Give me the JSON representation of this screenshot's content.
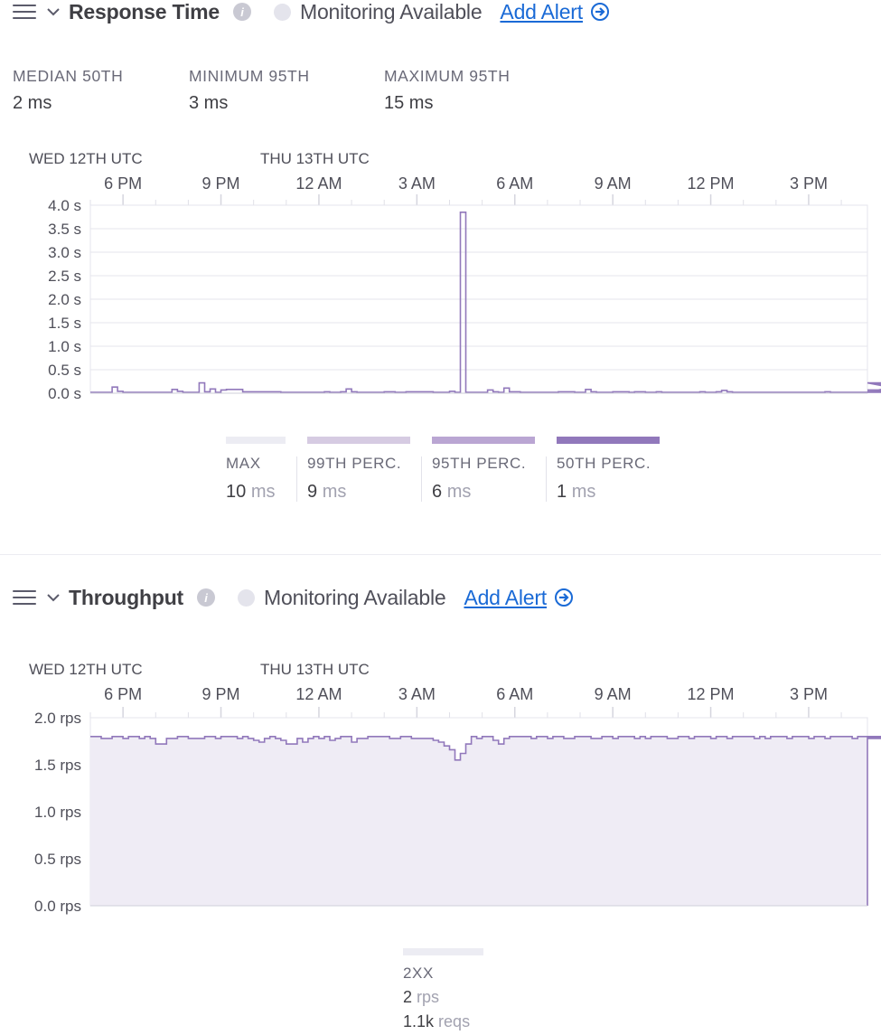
{
  "panels": [
    {
      "title": "Response Time",
      "monitoring": "Monitoring Available",
      "add_alert": "Add Alert",
      "stats": [
        {
          "label": "MEDIAN 50TH",
          "value": "2 ms"
        },
        {
          "label": "MINIMUM 95TH",
          "value": "3 ms"
        },
        {
          "label": "MAXIMUM 95TH",
          "value": "15 ms"
        }
      ],
      "legend": [
        {
          "label": "MAX",
          "value": "10",
          "unit": "ms",
          "color": "#ececf3"
        },
        {
          "label": "99TH PERC.",
          "value": "9",
          "unit": "ms",
          "color": "#d6cbe2"
        },
        {
          "label": "95TH PERC.",
          "value": "6",
          "unit": "ms",
          "color": "#baa6d3"
        },
        {
          "label": "50TH PERC.",
          "value": "1",
          "unit": "ms",
          "color": "#9178bb"
        }
      ]
    },
    {
      "title": "Throughput",
      "monitoring": "Monitoring Available",
      "add_alert": "Add Alert",
      "legend": [
        {
          "label": "2XX",
          "value": "2",
          "unit": "rps",
          "value2": "1.1k",
          "unit2": "reqs",
          "color": "#ececf3"
        }
      ]
    }
  ],
  "chart_data": [
    {
      "type": "line",
      "title": "Response Time",
      "date_labels": [
        "WED 12TH UTC",
        "THU 13TH UTC"
      ],
      "x_tick_labels": [
        "6 PM",
        "9 PM",
        "12 AM",
        "3 AM",
        "6 AM",
        "9 AM",
        "12 PM",
        "3 PM"
      ],
      "x_tick_hours": [
        18,
        21,
        24,
        27,
        30,
        33,
        36,
        39
      ],
      "x_range_hours": [
        17.0,
        40.8
      ],
      "y_tick_labels": [
        "4.0 s",
        "3.5 s",
        "3.0 s",
        "2.5 s",
        "2.0 s",
        "1.5 s",
        "1.0 s",
        "0.5 s",
        "0.0 s"
      ],
      "ylim": [
        0,
        4.0
      ],
      "grid": true,
      "series": [
        {
          "name": "MAX",
          "color": "#9178bb",
          "step_minutes": 10,
          "values": [
            0.02,
            0.02,
            0.02,
            0.02,
            0.13,
            0.04,
            0.02,
            0.02,
            0.02,
            0.02,
            0.02,
            0.02,
            0.02,
            0.02,
            0.02,
            0.08,
            0.04,
            0.02,
            0.02,
            0.02,
            0.22,
            0.03,
            0.09,
            0.02,
            0.07,
            0.08,
            0.08,
            0.08,
            0.03,
            0.03,
            0.03,
            0.03,
            0.03,
            0.03,
            0.03,
            0.02,
            0.02,
            0.02,
            0.02,
            0.02,
            0.02,
            0.02,
            0.02,
            0.03,
            0.02,
            0.02,
            0.03,
            0.09,
            0.03,
            0.02,
            0.02,
            0.02,
            0.02,
            0.02,
            0.03,
            0.03,
            0.02,
            0.02,
            0.03,
            0.03,
            0.03,
            0.03,
            0.03,
            0.02,
            0.02,
            0.02,
            0.04,
            0.02,
            3.85,
            0.02,
            0.02,
            0.02,
            0.02,
            0.07,
            0.03,
            0.02,
            0.11,
            0.03,
            0.03,
            0.02,
            0.02,
            0.02,
            0.02,
            0.02,
            0.02,
            0.02,
            0.03,
            0.03,
            0.03,
            0.02,
            0.02,
            0.08,
            0.03,
            0.02,
            0.02,
            0.02,
            0.03,
            0.03,
            0.03,
            0.02,
            0.03,
            0.03,
            0.02,
            0.02,
            0.03,
            0.02,
            0.02,
            0.02,
            0.02,
            0.02,
            0.02,
            0.02,
            0.03,
            0.02,
            0.02,
            0.03,
            0.06,
            0.03,
            0.02,
            0.02,
            0.02,
            0.02,
            0.02,
            0.02,
            0.02,
            0.02,
            0.02,
            0.02,
            0.02,
            0.02,
            0.02,
            0.02,
            0.02,
            0.02,
            0.02,
            0.03,
            0.02,
            0.02,
            0.02,
            0.02,
            0.02,
            0.02,
            0.02,
            0.02,
            0.02,
            0.02,
            0.02,
            0.02,
            0.02,
            0.02,
            0.02,
            0.22,
            0.02,
            0.02,
            0.02,
            0.02,
            0.02,
            0.22,
            0.02,
            0.02,
            0.03,
            0.02,
            0.02,
            0.07,
            0.04,
            0.03,
            0.03,
            0.02,
            0.02,
            0.02,
            0.02,
            0.02,
            0.02,
            0.02,
            0.02,
            0.02,
            0.02,
            0.02,
            0.02,
            0.02
          ]
        }
      ]
    },
    {
      "type": "area",
      "title": "Throughput",
      "date_labels": [
        "WED 12TH UTC",
        "THU 13TH UTC"
      ],
      "x_tick_labels": [
        "6 PM",
        "9 PM",
        "12 AM",
        "3 AM",
        "6 AM",
        "9 AM",
        "12 PM",
        "3 PM"
      ],
      "x_tick_hours": [
        18,
        21,
        24,
        27,
        30,
        33,
        36,
        39
      ],
      "x_range_hours": [
        17.0,
        40.8
      ],
      "y_tick_labels": [
        "2.0 rps",
        "1.5 rps",
        "1.0 rps",
        "0.5 rps",
        "0.0 rps"
      ],
      "ylim": [
        0,
        2.0
      ],
      "grid": true,
      "series": [
        {
          "name": "2XX",
          "color": "#9178bb",
          "fill": "#efecf5",
          "step_minutes": 10,
          "values": [
            1.8,
            1.8,
            1.78,
            1.78,
            1.8,
            1.8,
            1.78,
            1.8,
            1.8,
            1.78,
            1.8,
            1.78,
            1.72,
            1.72,
            1.78,
            1.78,
            1.8,
            1.8,
            1.78,
            1.78,
            1.78,
            1.8,
            1.8,
            1.78,
            1.8,
            1.8,
            1.8,
            1.78,
            1.8,
            1.78,
            1.76,
            1.74,
            1.78,
            1.8,
            1.78,
            1.76,
            1.72,
            1.72,
            1.78,
            1.74,
            1.78,
            1.8,
            1.78,
            1.8,
            1.76,
            1.78,
            1.8,
            1.8,
            1.74,
            1.78,
            1.78,
            1.8,
            1.8,
            1.8,
            1.8,
            1.78,
            1.78,
            1.8,
            1.8,
            1.78,
            1.78,
            1.78,
            1.78,
            1.76,
            1.74,
            1.7,
            1.66,
            1.55,
            1.62,
            1.72,
            1.8,
            1.78,
            1.8,
            1.8,
            1.76,
            1.72,
            1.78,
            1.8,
            1.8,
            1.8,
            1.8,
            1.78,
            1.8,
            1.8,
            1.78,
            1.8,
            1.8,
            1.78,
            1.78,
            1.8,
            1.8,
            1.8,
            1.78,
            1.78,
            1.8,
            1.8,
            1.78,
            1.8,
            1.8,
            1.8,
            1.78,
            1.8,
            1.78,
            1.8,
            1.8,
            1.8,
            1.78,
            1.78,
            1.8,
            1.8,
            1.78,
            1.8,
            1.8,
            1.8,
            1.78,
            1.8,
            1.8,
            1.78,
            1.8,
            1.8,
            1.8,
            1.8,
            1.78,
            1.8,
            1.78,
            1.8,
            1.8,
            1.8,
            1.78,
            1.8,
            1.8,
            1.8,
            1.78,
            1.8,
            1.8,
            1.78,
            1.8,
            1.8,
            1.8,
            1.8,
            1.78,
            1.8,
            1.8,
            1.78,
            1.8,
            1.8,
            1.8,
            1.78,
            1.8,
            1.8,
            1.8,
            1.8,
            1.78,
            1.8,
            1.8,
            1.78,
            1.8,
            1.8,
            1.8,
            1.8,
            1.78,
            1.8,
            1.8,
            1.78,
            1.8,
            1.8,
            1.8,
            1.8,
            1.78,
            1.8,
            1.8,
            1.8,
            1.78,
            1.8,
            1.8,
            1.8,
            1.78,
            1.8,
            1.8,
            1.8
          ]
        }
      ]
    }
  ]
}
